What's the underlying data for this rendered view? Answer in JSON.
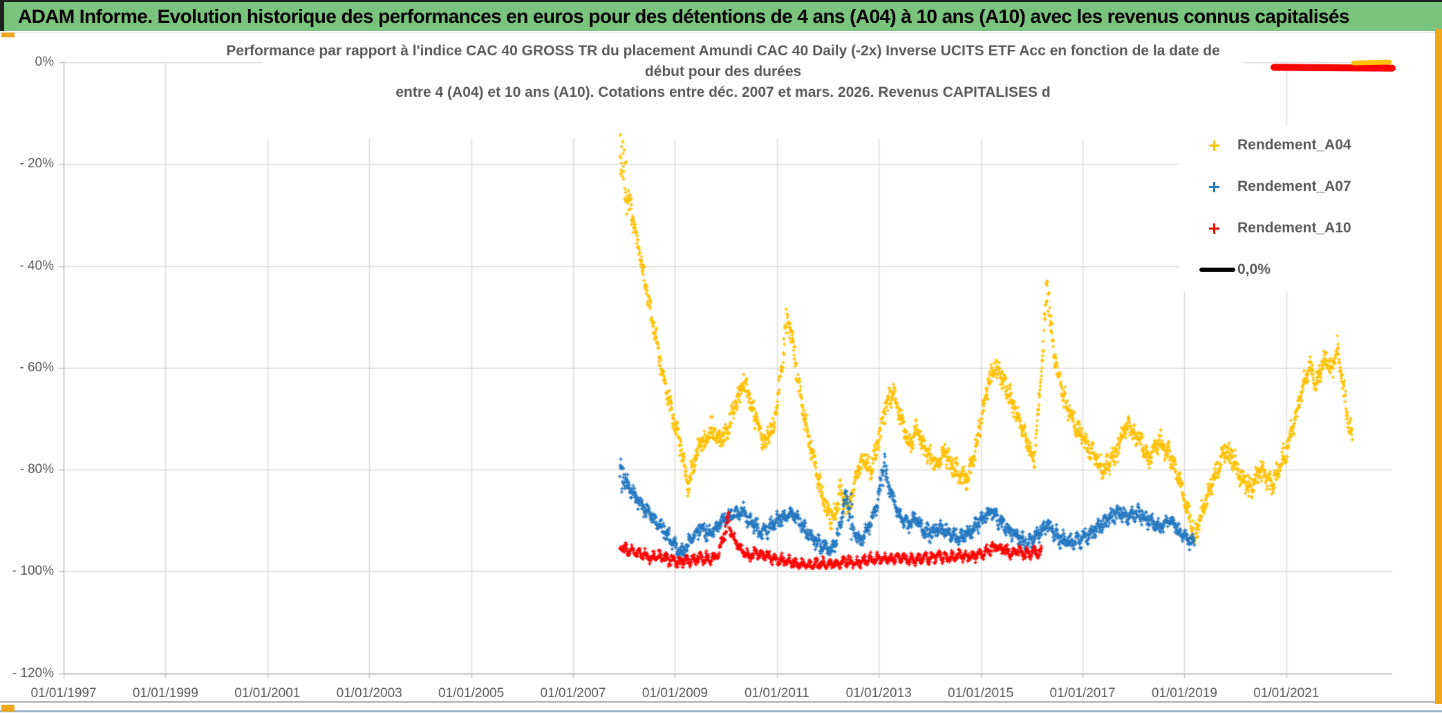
{
  "page": {
    "header_title": "ADAM Informe. Evolution historique des performances en euros pour des détentions de 4 ans (A04) à 10 ans (A10) avec les revenus connus capitalisés"
  },
  "colors": {
    "header_green": "#7BC47E",
    "frame_gold": "#F0A51F",
    "red_annotation": "#FE0000",
    "orange_annotation": "#FFC000",
    "gridline": "#D9D9D9",
    "axis": "#BFBFBF",
    "text_gray": "#595959"
  },
  "chart_data": {
    "type": "scatter",
    "title_lines": [
      "Performance par rapport à l'indice CAC 40 GROSS TR  du placement Amundi CAC 40 Daily (-2x) Inverse UCITS ETF Acc en fonction de la date de",
      "début pour des durées",
      "entre 4 (A04) et 10 ans (A10). Cotations entre déc. 2007 et mars. 2026. Revenus CAPITALISES d"
    ],
    "grid": true,
    "x_axis": {
      "tick_labels": [
        "01/01/1997",
        "01/01/1999",
        "01/01/2001",
        "01/01/2003",
        "01/01/2005",
        "01/01/2007",
        "01/01/2009",
        "01/01/2011",
        "01/01/2013",
        "01/01/2015",
        "01/01/2017",
        "01/01/2019",
        "01/01/2021"
      ],
      "tick_years": [
        1997,
        1999,
        2001,
        2003,
        2005,
        2007,
        2009,
        2011,
        2013,
        2015,
        2017,
        2019,
        2021
      ],
      "range_years": [
        1997.0,
        2023.1
      ]
    },
    "y_axis": {
      "tick_labels": [
        "0%",
        "- 20%",
        "- 40%",
        "- 60%",
        "- 80%",
        "- 100%",
        "- 120%"
      ],
      "tick_values": [
        0,
        -20,
        -40,
        -60,
        -80,
        -100,
        -120
      ],
      "range_pct": [
        0,
        -120
      ]
    },
    "legend": {
      "position": "right",
      "entries": [
        {
          "label": "Rendement_A04",
          "marker": "plus",
          "color": "#FFC000"
        },
        {
          "label": "Rendement_A07",
          "marker": "plus",
          "color": "#2578C0"
        },
        {
          "label": "Rendement_A10",
          "marker": "plus",
          "color": "#FE0000"
        },
        {
          "label": "0,0%",
          "marker": "line",
          "color": "#000000"
        }
      ]
    },
    "series": [
      {
        "name": "Rendement_A04",
        "color": "#FFC000",
        "marker": "plus",
        "start": 2007.92,
        "end": 2022.3,
        "step": 0.006,
        "spread": 2.4,
        "bursts": [
          [
            2008.02,
            0.1,
            1.8
          ],
          [
            2011.2,
            0.05,
            1.6
          ],
          [
            2016.3,
            0.05,
            1.6
          ]
        ],
        "points": [
          [
            2007.92,
            -17
          ],
          [
            2008.0,
            -23
          ],
          [
            2008.15,
            -30
          ],
          [
            2008.3,
            -37
          ],
          [
            2008.45,
            -45
          ],
          [
            2008.6,
            -53
          ],
          [
            2008.75,
            -61
          ],
          [
            2008.95,
            -69
          ],
          [
            2009.1,
            -75
          ],
          [
            2009.25,
            -83
          ],
          [
            2009.45,
            -76
          ],
          [
            2009.7,
            -72
          ],
          [
            2009.95,
            -74
          ],
          [
            2010.15,
            -68
          ],
          [
            2010.35,
            -63
          ],
          [
            2010.55,
            -69
          ],
          [
            2010.75,
            -75
          ],
          [
            2010.95,
            -71
          ],
          [
            2011.1,
            -60
          ],
          [
            2011.2,
            -48
          ],
          [
            2011.35,
            -58
          ],
          [
            2011.5,
            -68
          ],
          [
            2011.65,
            -75
          ],
          [
            2011.8,
            -82
          ],
          [
            2011.95,
            -87
          ],
          [
            2012.1,
            -90
          ],
          [
            2012.25,
            -84
          ],
          [
            2012.4,
            -88
          ],
          [
            2012.55,
            -82
          ],
          [
            2012.7,
            -78
          ],
          [
            2012.85,
            -80
          ],
          [
            2013.0,
            -74
          ],
          [
            2013.15,
            -67
          ],
          [
            2013.3,
            -65
          ],
          [
            2013.45,
            -71
          ],
          [
            2013.6,
            -75
          ],
          [
            2013.75,
            -72
          ],
          [
            2013.9,
            -76
          ],
          [
            2014.1,
            -79
          ],
          [
            2014.3,
            -77
          ],
          [
            2014.5,
            -80
          ],
          [
            2014.7,
            -82
          ],
          [
            2014.85,
            -78
          ],
          [
            2015.0,
            -71
          ],
          [
            2015.15,
            -63
          ],
          [
            2015.3,
            -60
          ],
          [
            2015.45,
            -63
          ],
          [
            2015.6,
            -66
          ],
          [
            2015.75,
            -70
          ],
          [
            2015.9,
            -74
          ],
          [
            2016.05,
            -78
          ],
          [
            2016.2,
            -60
          ],
          [
            2016.3,
            -44
          ],
          [
            2016.45,
            -58
          ],
          [
            2016.6,
            -65
          ],
          [
            2016.8,
            -70
          ],
          [
            2017.0,
            -74
          ],
          [
            2017.2,
            -77
          ],
          [
            2017.4,
            -80
          ],
          [
            2017.6,
            -78
          ],
          [
            2017.75,
            -74
          ],
          [
            2017.9,
            -71
          ],
          [
            2018.1,
            -74
          ],
          [
            2018.3,
            -78
          ],
          [
            2018.5,
            -74
          ],
          [
            2018.7,
            -77
          ],
          [
            2018.9,
            -82
          ],
          [
            2019.05,
            -88
          ],
          [
            2019.2,
            -93
          ],
          [
            2019.35,
            -88
          ],
          [
            2019.5,
            -84
          ],
          [
            2019.65,
            -80
          ],
          [
            2019.8,
            -76
          ],
          [
            2019.95,
            -78
          ],
          [
            2020.1,
            -81
          ],
          [
            2020.3,
            -84
          ],
          [
            2020.5,
            -80
          ],
          [
            2020.7,
            -83
          ],
          [
            2020.85,
            -80
          ],
          [
            2021.0,
            -76
          ],
          [
            2021.15,
            -71
          ],
          [
            2021.3,
            -65
          ],
          [
            2021.45,
            -60
          ],
          [
            2021.6,
            -63
          ],
          [
            2021.75,
            -58
          ],
          [
            2021.9,
            -61
          ],
          [
            2022.0,
            -56
          ],
          [
            2022.1,
            -62
          ],
          [
            2022.2,
            -70
          ],
          [
            2022.3,
            -74
          ]
        ]
      },
      {
        "name": "Rendement_A07",
        "color": "#2578C0",
        "marker": "plus",
        "start": 2007.92,
        "end": 2019.2,
        "step": 0.006,
        "spread": 1.6,
        "bursts": [
          [
            2007.97,
            0.07,
            1.6
          ],
          [
            2012.45,
            0.04,
            2.2
          ],
          [
            2013.1,
            0.05,
            2.0
          ]
        ],
        "points": [
          [
            2007.92,
            -80
          ],
          [
            2008.05,
            -83
          ],
          [
            2008.2,
            -85
          ],
          [
            2008.4,
            -88
          ],
          [
            2008.6,
            -90
          ],
          [
            2008.8,
            -92
          ],
          [
            2009.0,
            -95
          ],
          [
            2009.15,
            -96.5
          ],
          [
            2009.3,
            -94
          ],
          [
            2009.5,
            -91.5
          ],
          [
            2009.7,
            -92.5
          ],
          [
            2009.9,
            -90.5
          ],
          [
            2010.1,
            -89
          ],
          [
            2010.3,
            -88
          ],
          [
            2010.5,
            -90.5
          ],
          [
            2010.7,
            -92.5
          ],
          [
            2010.9,
            -91
          ],
          [
            2011.1,
            -89.5
          ],
          [
            2011.3,
            -88.5
          ],
          [
            2011.5,
            -91
          ],
          [
            2011.7,
            -93.5
          ],
          [
            2011.9,
            -95
          ],
          [
            2012.05,
            -96
          ],
          [
            2012.2,
            -93
          ],
          [
            2012.35,
            -85
          ],
          [
            2012.5,
            -92
          ],
          [
            2012.65,
            -94
          ],
          [
            2012.8,
            -91
          ],
          [
            2012.95,
            -88
          ],
          [
            2013.1,
            -79
          ],
          [
            2013.25,
            -85
          ],
          [
            2013.4,
            -89
          ],
          [
            2013.55,
            -91
          ],
          [
            2013.7,
            -90
          ],
          [
            2013.85,
            -91.5
          ],
          [
            2014.0,
            -92.5
          ],
          [
            2014.2,
            -91.5
          ],
          [
            2014.4,
            -92.5
          ],
          [
            2014.6,
            -93.5
          ],
          [
            2014.8,
            -92
          ],
          [
            2015.0,
            -90
          ],
          [
            2015.2,
            -88.5
          ],
          [
            2015.35,
            -90
          ],
          [
            2015.5,
            -91.5
          ],
          [
            2015.7,
            -93
          ],
          [
            2015.9,
            -94.5
          ],
          [
            2016.1,
            -93
          ],
          [
            2016.3,
            -90.5
          ],
          [
            2016.5,
            -93
          ],
          [
            2016.7,
            -94.5
          ],
          [
            2016.9,
            -94
          ],
          [
            2017.1,
            -93
          ],
          [
            2017.3,
            -91.5
          ],
          [
            2017.5,
            -89.5
          ],
          [
            2017.7,
            -88.5
          ],
          [
            2017.9,
            -89.5
          ],
          [
            2018.1,
            -88.5
          ],
          [
            2018.3,
            -90
          ],
          [
            2018.5,
            -91.5
          ],
          [
            2018.7,
            -90
          ],
          [
            2018.9,
            -92
          ],
          [
            2019.05,
            -93.5
          ],
          [
            2019.2,
            -94.5
          ]
        ]
      },
      {
        "name": "Rendement_A10",
        "color": "#FE0000",
        "marker": "plus",
        "start": 2007.92,
        "end": 2016.2,
        "step": 0.007,
        "spread": 1.0,
        "bursts": [
          [
            2010.02,
            0.05,
            1.5
          ]
        ],
        "points": [
          [
            2007.92,
            -95.5
          ],
          [
            2008.1,
            -96
          ],
          [
            2008.3,
            -96.5
          ],
          [
            2008.5,
            -97.3
          ],
          [
            2008.7,
            -97
          ],
          [
            2008.9,
            -97.8
          ],
          [
            2009.1,
            -98.3
          ],
          [
            2009.3,
            -97.8
          ],
          [
            2009.5,
            -97.2
          ],
          [
            2009.7,
            -97.6
          ],
          [
            2009.85,
            -96.8
          ],
          [
            2009.95,
            -93
          ],
          [
            2010.05,
            -90
          ],
          [
            2010.15,
            -93.5
          ],
          [
            2010.3,
            -96
          ],
          [
            2010.45,
            -97
          ],
          [
            2010.6,
            -96.3
          ],
          [
            2010.8,
            -97
          ],
          [
            2011.0,
            -97.5
          ],
          [
            2011.2,
            -98
          ],
          [
            2011.4,
            -98.5
          ],
          [
            2011.6,
            -98.8
          ],
          [
            2011.8,
            -98.4
          ],
          [
            2012.0,
            -98.8
          ],
          [
            2012.2,
            -98.5
          ],
          [
            2012.4,
            -98
          ],
          [
            2012.6,
            -98.3
          ],
          [
            2012.8,
            -97.8
          ],
          [
            2013.0,
            -97.4
          ],
          [
            2013.2,
            -97.7
          ],
          [
            2013.4,
            -97.3
          ],
          [
            2013.6,
            -97.6
          ],
          [
            2013.8,
            -97.2
          ],
          [
            2014.0,
            -97.5
          ],
          [
            2014.2,
            -97
          ],
          [
            2014.4,
            -97.3
          ],
          [
            2014.6,
            -96.8
          ],
          [
            2014.8,
            -97.1
          ],
          [
            2015.0,
            -96.6
          ],
          [
            2015.15,
            -95.8
          ],
          [
            2015.3,
            -95.2
          ],
          [
            2015.45,
            -95.8
          ],
          [
            2015.6,
            -96.3
          ],
          [
            2015.75,
            -96
          ],
          [
            2015.9,
            -96.5
          ],
          [
            2016.05,
            -96.2
          ],
          [
            2016.2,
            -96.6
          ]
        ]
      }
    ],
    "zero_line": {
      "label": "0,0%",
      "color": "#000000",
      "value_pct": 0
    }
  }
}
